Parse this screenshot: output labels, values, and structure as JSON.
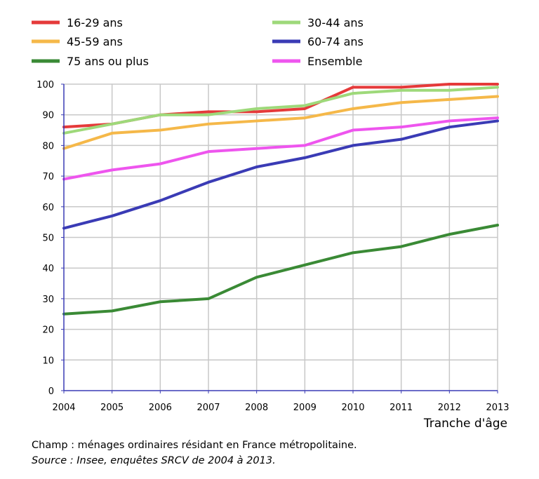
{
  "chart_data": {
    "type": "line",
    "title": "",
    "xlabel": "Tranche d'âge",
    "ylabel": "",
    "x": [
      2004,
      2005,
      2006,
      2007,
      2008,
      2009,
      2010,
      2011,
      2012,
      2013
    ],
    "ylim": [
      0,
      100
    ],
    "yticks": [
      0,
      10,
      20,
      30,
      40,
      50,
      60,
      70,
      80,
      90,
      100
    ],
    "grid": true,
    "legend_position": "top",
    "series": [
      {
        "name": "16-29 ans",
        "color": "#e53a3a",
        "values": [
          86,
          87,
          90,
          91,
          91,
          92,
          99,
          99,
          100,
          100
        ]
      },
      {
        "name": "30-44 ans",
        "color": "#9ed97a",
        "values": [
          84,
          87,
          90,
          90,
          92,
          93,
          97,
          98,
          98,
          99
        ]
      },
      {
        "name": "45-59 ans",
        "color": "#f5b849",
        "values": [
          79,
          84,
          85,
          87,
          88,
          89,
          92,
          94,
          95,
          96
        ]
      },
      {
        "name": "60-74 ans",
        "color": "#3a3bb5",
        "values": [
          53,
          57,
          62,
          68,
          73,
          76,
          80,
          82,
          86,
          88
        ]
      },
      {
        "name": "75 ans ou plus",
        "color": "#3a8a35",
        "values": [
          25,
          26,
          29,
          30,
          37,
          41,
          45,
          47,
          51,
          54
        ]
      },
      {
        "name": "Ensemble",
        "color": "#ee55ee",
        "values": [
          69,
          72,
          74,
          78,
          79,
          80,
          85,
          86,
          88,
          89
        ]
      }
    ]
  },
  "notes": {
    "champ": "Champ : ménages ordinaires résidant en France métropolitaine.",
    "source": "Source : Insee, enquêtes SRCV de 2004 à 2013."
  },
  "colors": {
    "grid": "#c8c8c8",
    "axis": "#3a3bb5"
  }
}
